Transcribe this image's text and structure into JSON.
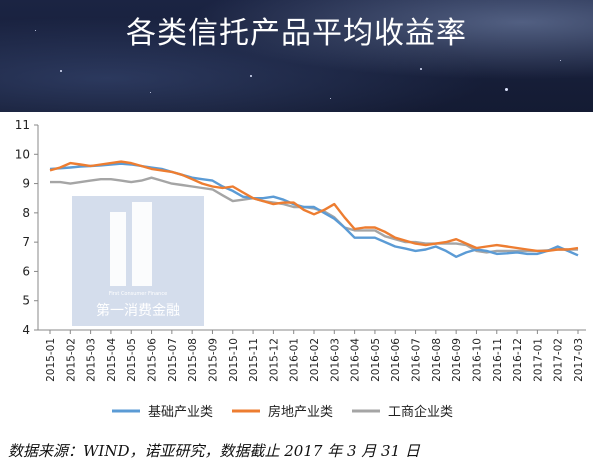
{
  "banner": {
    "title": "各类信托产品平均收益率"
  },
  "watermark": {
    "small_text": "First Consumer Finance",
    "brand_text": "第一消费金融"
  },
  "source": "数据来源：WIND，诺亚研究，数据截止 2017 年 3 月 31 日",
  "chart_data": {
    "type": "line",
    "title": "",
    "xlabel": "",
    "ylabel": "",
    "ylim": [
      4,
      11
    ],
    "yticks": [
      4,
      5,
      6,
      7,
      8,
      9,
      10,
      11
    ],
    "grid": false,
    "legend_position": "bottom",
    "x": [
      "2015-01",
      "2015-01.5",
      "2015-02",
      "2015-02.5",
      "2015-03",
      "2015-03.5",
      "2015-04",
      "2015-04.5",
      "2015-05",
      "2015-05.5",
      "2015-06",
      "2015-06.5",
      "2015-07",
      "2015-07.5",
      "2015-08",
      "2015-08.5",
      "2015-09",
      "2015-09.5",
      "2015-10",
      "2015-10.5",
      "2015-11",
      "2015-11.5",
      "2015-12",
      "2015-12.5",
      "2016-01",
      "2016-01.5",
      "2016-02",
      "2016-02.5",
      "2016-03",
      "2016-03.5",
      "2016-04",
      "2016-04.5",
      "2016-05",
      "2016-05.5",
      "2016-06",
      "2016-06.5",
      "2016-07",
      "2016-07.5",
      "2016-08",
      "2016-08.5",
      "2016-09",
      "2016-09.5",
      "2016-10",
      "2016-10.5",
      "2016-11",
      "2016-11.5",
      "2016-12",
      "2016-12.5",
      "2017-01",
      "2017-01.5",
      "2017-02",
      "2017-02.5",
      "2017-03"
    ],
    "x_tick_labels": [
      "2015-01",
      "2015-02",
      "2015-03",
      "2015-04",
      "2015-05",
      "2015-06",
      "2015-07",
      "2015-08",
      "2015-09",
      "2015-10",
      "2015-11",
      "2015-12",
      "2016-01",
      "2016-02",
      "2016-03",
      "2016-04",
      "2016-05",
      "2016-06",
      "2016-07",
      "2016-08",
      "2016-09",
      "2016-10",
      "2016-11",
      "2016-12",
      "2017-01",
      "2017-02",
      "2017-03"
    ],
    "series": [
      {
        "name": "基础产业类",
        "color": "#5b9bd5",
        "values": [
          9.5,
          9.52,
          9.55,
          9.58,
          9.6,
          9.62,
          9.65,
          9.68,
          9.65,
          9.6,
          9.55,
          9.5,
          9.4,
          9.3,
          9.2,
          9.15,
          9.1,
          8.9,
          8.75,
          8.55,
          8.5,
          8.5,
          8.55,
          8.45,
          8.3,
          8.2,
          8.2,
          8.0,
          7.8,
          7.5,
          7.15,
          7.15,
          7.15,
          7.0,
          6.85,
          6.78,
          6.7,
          6.75,
          6.85,
          6.7,
          6.5,
          6.65,
          6.75,
          6.7,
          6.6,
          6.62,
          6.65,
          6.6,
          6.6,
          6.7,
          6.85,
          6.7,
          6.55
        ]
      },
      {
        "name": "房地产业类",
        "color": "#ed7d31",
        "values": [
          9.45,
          9.55,
          9.7,
          9.65,
          9.6,
          9.65,
          9.7,
          9.75,
          9.7,
          9.6,
          9.5,
          9.45,
          9.4,
          9.3,
          9.15,
          9.0,
          8.9,
          8.85,
          8.9,
          8.7,
          8.5,
          8.4,
          8.3,
          8.35,
          8.35,
          8.1,
          7.95,
          8.1,
          8.3,
          7.85,
          7.45,
          7.5,
          7.5,
          7.35,
          7.15,
          7.05,
          6.95,
          6.9,
          6.95,
          7.0,
          7.1,
          6.95,
          6.8,
          6.85,
          6.9,
          6.85,
          6.8,
          6.75,
          6.7,
          6.7,
          6.75,
          6.75,
          6.8
        ]
      },
      {
        "name": "工商企业类",
        "color": "#a5a5a5",
        "values": [
          9.05,
          9.05,
          9.0,
          9.05,
          9.1,
          9.15,
          9.15,
          9.1,
          9.05,
          9.1,
          9.2,
          9.1,
          9.0,
          8.95,
          8.9,
          8.85,
          8.8,
          8.6,
          8.4,
          8.45,
          8.5,
          8.4,
          8.35,
          8.3,
          8.2,
          8.2,
          8.15,
          8.05,
          7.85,
          7.5,
          7.4,
          7.4,
          7.4,
          7.2,
          7.1,
          7.0,
          7.0,
          6.95,
          6.95,
          6.95,
          6.95,
          6.9,
          6.7,
          6.65,
          6.7,
          6.7,
          6.7,
          6.7,
          6.7,
          6.72,
          6.75,
          6.75,
          6.75
        ]
      }
    ]
  }
}
